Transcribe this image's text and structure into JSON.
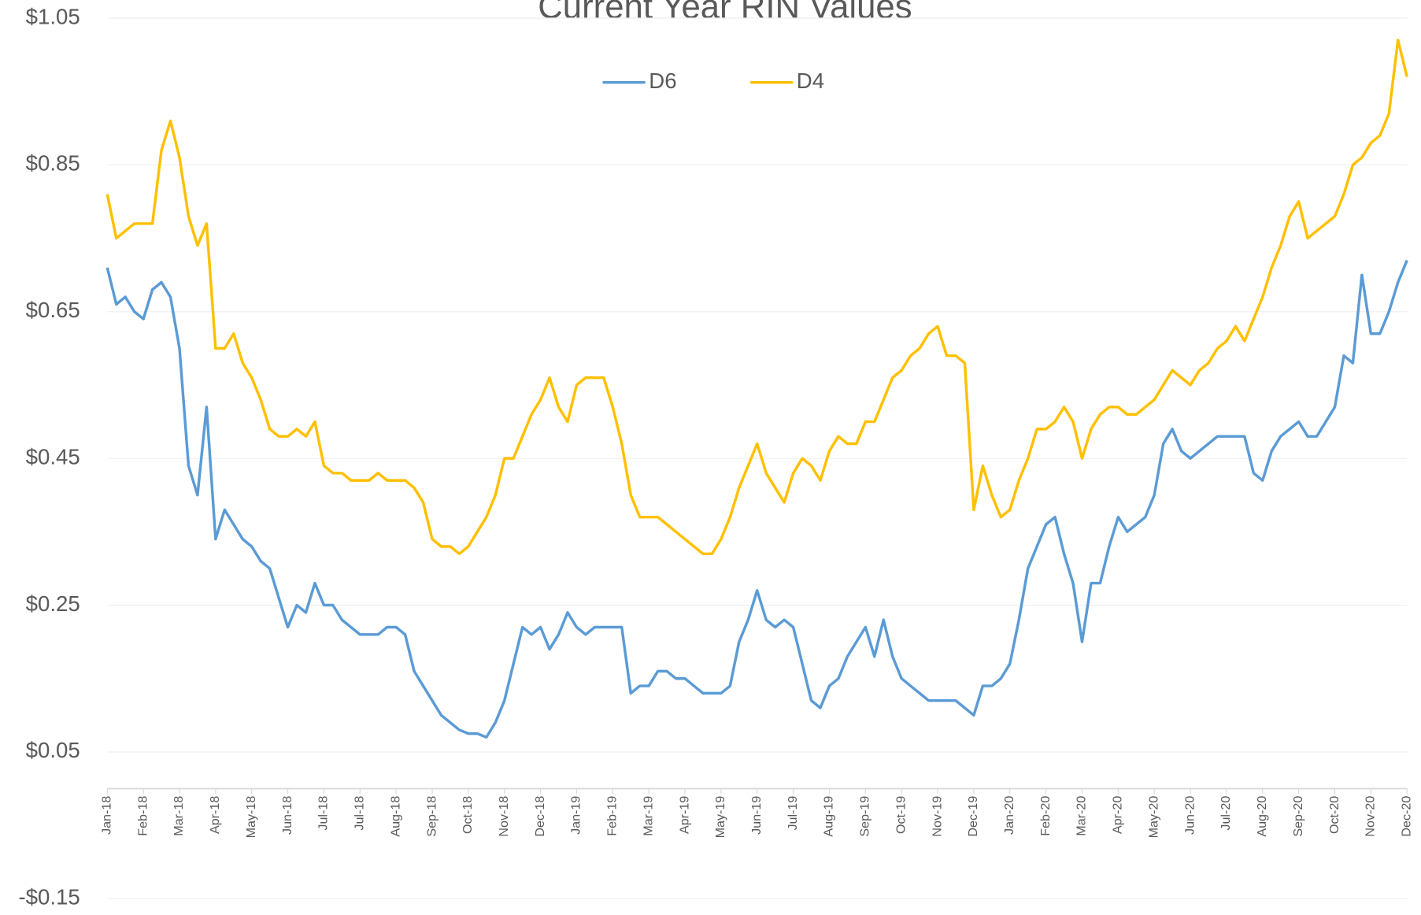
{
  "chart_data": {
    "type": "line",
    "title": "Current Year RIN Values",
    "categories": [
      "Jan-18",
      null,
      null,
      null,
      "Feb-18",
      null,
      null,
      null,
      "Mar-18",
      null,
      null,
      null,
      "Apr-18",
      null,
      null,
      null,
      "May-18",
      null,
      null,
      null,
      "Jun-18",
      null,
      null,
      null,
      "Jul-18",
      null,
      null,
      null,
      "Jul-18",
      null,
      null,
      null,
      "Aug-18",
      null,
      null,
      null,
      "Sep-18",
      null,
      null,
      null,
      "Oct-18",
      null,
      null,
      null,
      "Nov-18",
      null,
      null,
      null,
      "Dec-18",
      null,
      null,
      null,
      "Jan-19",
      null,
      null,
      null,
      "Feb-19",
      null,
      null,
      null,
      "Mar-19",
      null,
      null,
      null,
      "Apr-19",
      null,
      null,
      null,
      "May-19",
      null,
      null,
      null,
      "Jun-19",
      null,
      null,
      null,
      "Jul-19",
      null,
      null,
      null,
      "Aug-19",
      null,
      null,
      null,
      "Sep-19",
      null,
      null,
      null,
      "Oct-19",
      null,
      null,
      null,
      "Nov-19",
      null,
      null,
      null,
      "Dec-19",
      null,
      null,
      null,
      "Jan-20",
      null,
      null,
      null,
      "Feb-20",
      null,
      null,
      null,
      "Mar-20",
      null,
      null,
      null,
      "Apr-20",
      null,
      null,
      null,
      "May-20",
      null,
      null,
      null,
      "Jun-20",
      null,
      null,
      null,
      "Jul-20",
      null,
      null,
      null,
      "Aug-20",
      null,
      null,
      null,
      "Sep-20",
      null,
      null,
      null,
      "Oct-20",
      null,
      null,
      null,
      "Nov-20",
      null,
      null,
      null,
      "Dec-20"
    ],
    "series": [
      {
        "name": "D6",
        "color": "#5b9bd5",
        "values": [
          0.71,
          0.66,
          0.67,
          0.65,
          0.64,
          0.68,
          0.69,
          0.67,
          0.6,
          0.44,
          0.4,
          0.52,
          0.34,
          0.38,
          0.36,
          0.34,
          0.33,
          0.31,
          0.3,
          0.26,
          0.22,
          0.25,
          0.24,
          0.28,
          0.25,
          0.25,
          0.23,
          0.22,
          0.21,
          0.21,
          0.21,
          0.22,
          0.22,
          0.21,
          0.16,
          0.14,
          0.12,
          0.1,
          0.09,
          0.08,
          0.075,
          0.075,
          0.07,
          0.09,
          0.12,
          0.17,
          0.22,
          0.21,
          0.22,
          0.19,
          0.21,
          0.24,
          0.22,
          0.21,
          0.22,
          0.22,
          0.22,
          0.22,
          0.13,
          0.14,
          0.14,
          0.16,
          0.16,
          0.15,
          0.15,
          0.14,
          0.13,
          0.13,
          0.13,
          0.14,
          0.2,
          0.23,
          0.27,
          0.23,
          0.22,
          0.23,
          0.22,
          0.17,
          0.12,
          0.11,
          0.14,
          0.15,
          0.18,
          0.2,
          0.22,
          0.18,
          0.23,
          0.18,
          0.15,
          0.14,
          0.13,
          0.12,
          0.12,
          0.12,
          0.12,
          0.11,
          0.1,
          0.14,
          0.14,
          0.15,
          0.17,
          0.23,
          0.3,
          0.33,
          0.36,
          0.37,
          0.32,
          0.28,
          0.2,
          0.28,
          0.28,
          0.33,
          0.37,
          0.35,
          0.36,
          0.37,
          0.4,
          0.47,
          0.49,
          0.46,
          0.45,
          0.46,
          0.47,
          0.48,
          0.48,
          0.48,
          0.48,
          0.43,
          0.42,
          0.46,
          0.48,
          0.49,
          0.5,
          0.48,
          0.48,
          0.5,
          0.52,
          0.59,
          0.58,
          0.7,
          0.62,
          0.62,
          0.65,
          0.69,
          0.72
        ]
      },
      {
        "name": "D4",
        "color": "#ffc000",
        "values": [
          0.81,
          0.75,
          0.76,
          0.77,
          0.77,
          0.77,
          0.87,
          0.91,
          0.86,
          0.78,
          0.74,
          0.77,
          0.6,
          0.6,
          0.62,
          0.58,
          0.56,
          0.53,
          0.49,
          0.48,
          0.48,
          0.49,
          0.48,
          0.5,
          0.44,
          0.43,
          0.43,
          0.42,
          0.42,
          0.42,
          0.43,
          0.42,
          0.42,
          0.42,
          0.41,
          0.39,
          0.34,
          0.33,
          0.33,
          0.32,
          0.33,
          0.35,
          0.37,
          0.4,
          0.45,
          0.45,
          0.48,
          0.51,
          0.53,
          0.56,
          0.52,
          0.5,
          0.55,
          0.56,
          0.56,
          0.56,
          0.52,
          0.47,
          0.4,
          0.37,
          0.37,
          0.37,
          0.36,
          0.35,
          0.34,
          0.33,
          0.32,
          0.32,
          0.34,
          0.37,
          0.41,
          0.44,
          0.47,
          0.43,
          0.41,
          0.39,
          0.43,
          0.45,
          0.44,
          0.42,
          0.46,
          0.48,
          0.47,
          0.47,
          0.5,
          0.5,
          0.53,
          0.56,
          0.57,
          0.59,
          0.6,
          0.62,
          0.63,
          0.59,
          0.59,
          0.58,
          0.38,
          0.44,
          0.4,
          0.37,
          0.38,
          0.42,
          0.45,
          0.49,
          0.49,
          0.5,
          0.52,
          0.5,
          0.45,
          0.49,
          0.51,
          0.52,
          0.52,
          0.51,
          0.51,
          0.52,
          0.53,
          0.55,
          0.57,
          0.56,
          0.55,
          0.57,
          0.58,
          0.6,
          0.61,
          0.63,
          0.61,
          0.64,
          0.67,
          0.71,
          0.74,
          0.78,
          0.8,
          0.75,
          0.76,
          0.77,
          0.78,
          0.81,
          0.85,
          0.86,
          0.88,
          0.89,
          0.92,
          1.02,
          0.97
        ]
      }
    ],
    "ylim": [
      -0.15,
      1.05
    ],
    "yticks": [
      {
        "value": -0.15,
        "label": "-$0.15"
      },
      {
        "value": 0.05,
        "label": "$0.05"
      },
      {
        "value": 0.25,
        "label": "$0.25"
      },
      {
        "value": 0.45,
        "label": "$0.45"
      },
      {
        "value": 0.65,
        "label": "$0.65"
      },
      {
        "value": 0.85,
        "label": "$0.85"
      },
      {
        "value": 1.05,
        "label": "$1.05"
      }
    ],
    "grid": true,
    "legend": "top"
  }
}
